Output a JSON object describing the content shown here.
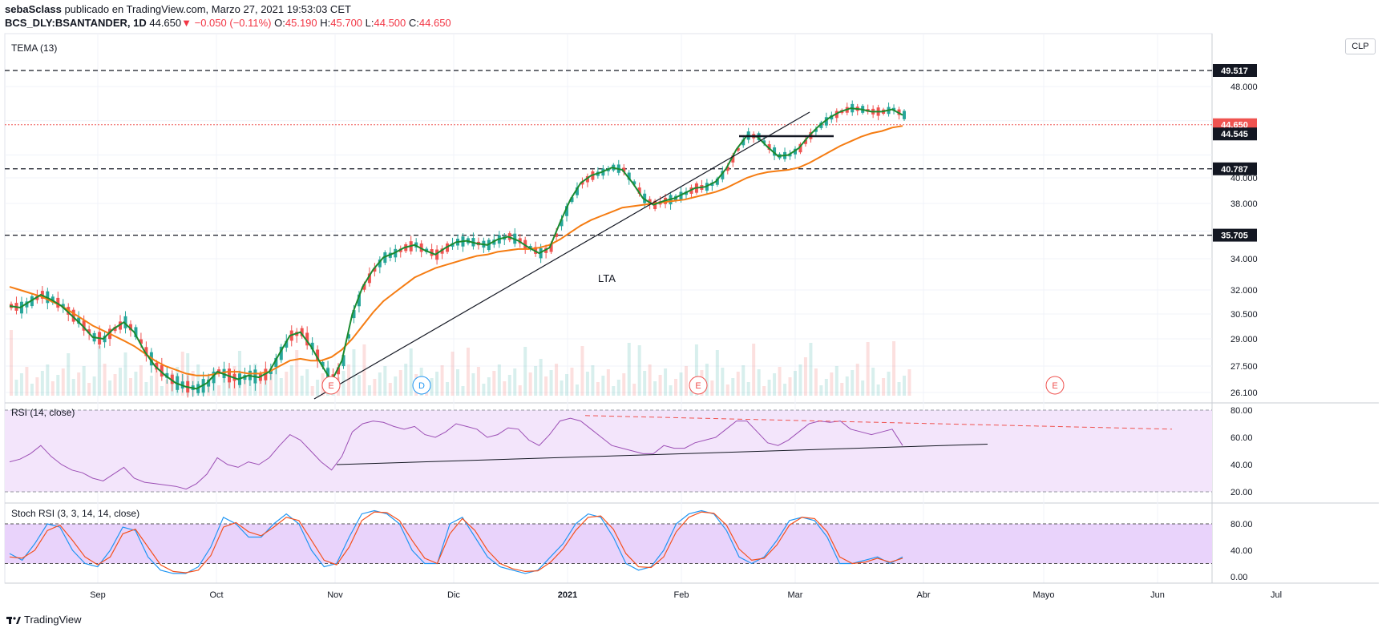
{
  "header": {
    "author": "sebaSclass",
    "published_text": " publicado en TradingView.com, Marzo 27, 2021 19:53:03 CET",
    "symbol": "BCS_DLY:BSANTANDER, 1D",
    "last": "44.650",
    "change": "−0.050 (−0.11%)",
    "open_label": "O:",
    "open": "45.190",
    "high_label": "H:",
    "high": "45.700",
    "low_label": "L:",
    "low": "44.500",
    "close_label": "C:",
    "close": "44.650"
  },
  "currency_button": "CLP",
  "footer_brand": "TradingView",
  "colors": {
    "up": "#26a69a",
    "down": "#ef5350",
    "tema": "#1b8a2f",
    "slow": "#f57c12",
    "rsi": "#9c4fb5",
    "rsi_bg": "#f3e5fb",
    "stoch_k": "#2196f3",
    "stoch_d": "#f4511e",
    "stoch_bg": "#e9d3fb",
    "price_tag": "#ef5350"
  },
  "chart_data": [
    {
      "type": "candlestick",
      "title": "TEMA (13)",
      "y_ticks": [
        48.0,
        45.0,
        42.0,
        40.0,
        38.0,
        36.0,
        34.0,
        32.0,
        30.5,
        29.0,
        27.5,
        26.1
      ],
      "y_tick_labels": [
        "48.000",
        "",
        "",
        "40.000",
        "38.000",
        "",
        "34.000",
        "32.000",
        "30.500",
        "29.000",
        "27.500",
        "26.100"
      ],
      "x_ticks": [
        "Sep",
        "Oct",
        "Nov",
        "Dic",
        "2021",
        "Feb",
        "Mar",
        "Abr",
        "Mayo",
        "Jun",
        "Jul"
      ],
      "horizontal_levels": [
        49.517,
        40.787,
        35.705
      ],
      "level_labels": [
        "49.517",
        "40.787",
        "35.705"
      ],
      "last_price": 44.65,
      "last_price_label": "44.650",
      "ma_last": 44.545,
      "ma_last_label": "44.545",
      "annotation": "LTA",
      "events": [
        "E",
        "D",
        "E",
        "E"
      ],
      "tema_series": [
        31.0,
        30.9,
        31.3,
        31.7,
        31.4,
        31.0,
        30.4,
        29.8,
        29.1,
        29.0,
        29.6,
        30.0,
        29.4,
        28.3,
        27.5,
        27.0,
        26.6,
        26.4,
        26.3,
        26.6,
        27.2,
        27.0,
        26.8,
        27.0,
        26.9,
        27.2,
        28.2,
        29.2,
        29.4,
        28.6,
        27.6,
        26.7,
        27.8,
        30.5,
        32.2,
        33.3,
        34.1,
        34.4,
        34.8,
        35.0,
        34.6,
        34.3,
        34.8,
        35.2,
        35.3,
        35.1,
        35.0,
        35.4,
        35.6,
        35.3,
        34.8,
        34.4,
        34.8,
        36.6,
        38.3,
        39.6,
        40.2,
        40.5,
        40.9,
        40.7,
        39.6,
        38.4,
        37.9,
        38.2,
        38.4,
        38.8,
        39.2,
        39.3,
        39.7,
        40.8,
        42.5,
        43.7,
        43.6,
        42.7,
        41.9,
        42.0,
        42.6,
        43.7,
        44.6,
        45.3,
        45.8,
        46.1,
        46.0,
        45.8,
        45.8,
        46.0,
        45.5
      ],
      "slow_ma_series": [
        32.2,
        32.0,
        31.8,
        31.6,
        31.3,
        31.0,
        30.6,
        30.2,
        29.8,
        29.5,
        29.2,
        28.9,
        28.6,
        28.2,
        27.8,
        27.5,
        27.3,
        27.1,
        27.0,
        27.0,
        27.1,
        27.2,
        27.2,
        27.1,
        27.1,
        27.2,
        27.5,
        27.8,
        27.9,
        27.8,
        27.8,
        28.0,
        28.4,
        29.0,
        29.8,
        30.6,
        31.3,
        31.8,
        32.3,
        32.8,
        33.1,
        33.4,
        33.6,
        33.8,
        34.0,
        34.2,
        34.3,
        34.5,
        34.6,
        34.7,
        34.7,
        34.8,
        35.0,
        35.4,
        35.9,
        36.4,
        36.8,
        37.1,
        37.4,
        37.7,
        37.8,
        37.9,
        38.0,
        38.1,
        38.2,
        38.3,
        38.5,
        38.7,
        38.9,
        39.2,
        39.6,
        40.0,
        40.3,
        40.5,
        40.6,
        40.7,
        40.9,
        41.3,
        41.8,
        42.3,
        42.8,
        43.2,
        43.6,
        43.9,
        44.1,
        44.4,
        44.545
      ]
    },
    {
      "type": "line",
      "title": "RSI (14, close)",
      "y_ticks": [
        80.0,
        60.0,
        40.0,
        20.0
      ],
      "y_tick_labels": [
        "80.00",
        "60.00",
        "40.00",
        "20.00"
      ],
      "band": [
        20,
        80
      ],
      "values": [
        42,
        44,
        48,
        54,
        46,
        40,
        36,
        34,
        30,
        28,
        33,
        38,
        30,
        27,
        26,
        25,
        24,
        22,
        26,
        33,
        45,
        40,
        38,
        42,
        40,
        45,
        54,
        62,
        58,
        50,
        42,
        36,
        46,
        64,
        70,
        72,
        71,
        68,
        66,
        68,
        62,
        60,
        64,
        70,
        68,
        66,
        60,
        62,
        67,
        66,
        58,
        54,
        62,
        72,
        74,
        72,
        66,
        60,
        54,
        52,
        50,
        48,
        48,
        54,
        52,
        52,
        56,
        58,
        60,
        66,
        72,
        72,
        64,
        56,
        54,
        58,
        64,
        70,
        72,
        71,
        72,
        66,
        64,
        62,
        64,
        66,
        54
      ]
    },
    {
      "type": "line",
      "title": "Stoch RSI (3, 3, 14, 14, close)",
      "y_ticks": [
        80.0,
        40.0,
        0.0
      ],
      "y_tick_labels": [
        "80.00",
        "40.00",
        "0.00"
      ],
      "band": [
        20,
        80
      ],
      "series": [
        {
          "values": [
            35,
            25,
            50,
            80,
            75,
            40,
            20,
            15,
            40,
            75,
            70,
            30,
            10,
            5,
            5,
            15,
            45,
            90,
            80,
            60,
            60,
            80,
            95,
            80,
            40,
            15,
            20,
            60,
            95,
            100,
            95,
            80,
            40,
            20,
            20,
            80,
            90,
            60,
            30,
            15,
            10,
            5,
            10,
            30,
            50,
            80,
            95,
            90,
            60,
            20,
            10,
            15,
            40,
            80,
            95,
            100,
            95,
            70,
            30,
            20,
            30,
            55,
            85,
            90,
            85,
            60,
            20,
            20,
            25,
            30,
            20,
            30
          ]
        },
        {
          "values": [
            30,
            28,
            40,
            70,
            78,
            55,
            30,
            18,
            30,
            65,
            72,
            45,
            18,
            8,
            6,
            10,
            32,
            75,
            82,
            68,
            62,
            75,
            90,
            85,
            55,
            25,
            18,
            45,
            85,
            98,
            97,
            85,
            55,
            28,
            20,
            65,
            88,
            70,
            40,
            20,
            12,
            8,
            9,
            22,
            42,
            70,
            90,
            92,
            72,
            35,
            15,
            14,
            30,
            68,
            90,
            98,
            96,
            78,
            42,
            25,
            28,
            48,
            78,
            90,
            88,
            68,
            30,
            20,
            22,
            28,
            22,
            28
          ]
        }
      ]
    }
  ]
}
